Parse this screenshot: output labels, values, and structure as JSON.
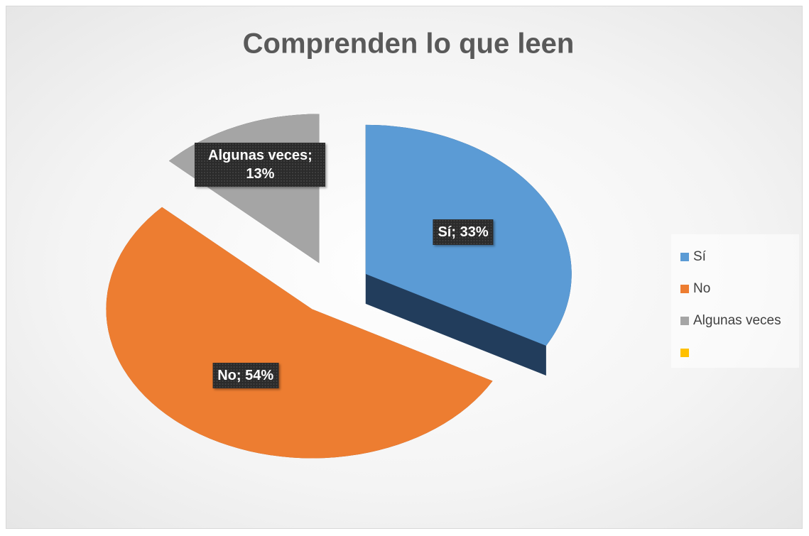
{
  "chart_data": {
    "type": "pie",
    "title": "Comprenden lo que leen",
    "categories": [
      "Sí",
      "No",
      "Algunas veces",
      null
    ],
    "values": [
      33,
      54,
      13,
      null
    ],
    "value_labels": [
      "Sí; 33%",
      "No; 54%",
      "Algunas veces; 13%",
      null
    ],
    "colors": [
      "#5b9bd5",
      "#ed7d31",
      "#a5a5a5",
      "#ffc000"
    ],
    "side_colors": [
      "#223d5c",
      "#8e4416",
      "#404040",
      "#b38600"
    ],
    "legend": "right"
  }
}
